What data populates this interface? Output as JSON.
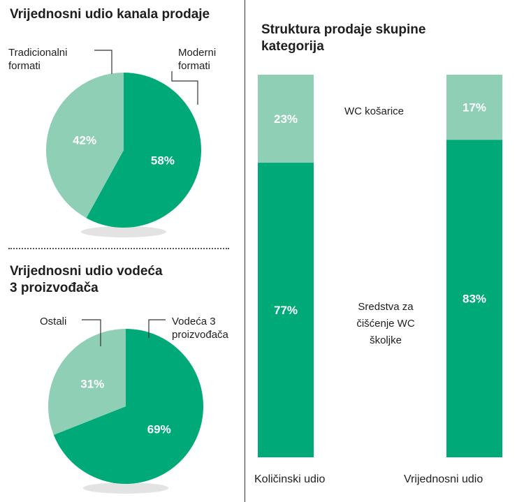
{
  "colors": {
    "dark": "#00aa78",
    "light": "#8ecfb6",
    "shadow": "#e3e3e3",
    "line": "#333333"
  },
  "chart_data": [
    {
      "type": "pie",
      "title": "Vrijednosni udio kanala prodaje",
      "slices": [
        {
          "label": "Moderni formati",
          "label_lines": [
            "Moderni",
            "formati"
          ],
          "value": 58,
          "value_label": "58%"
        },
        {
          "label": "Tradicionalni formati",
          "label_lines": [
            "Tradicionalni",
            "formati"
          ],
          "value": 42,
          "value_label": "42%"
        }
      ]
    },
    {
      "type": "pie",
      "title_lines": [
        "Vrijednosni udio vodeća",
        "3 proizvođača"
      ],
      "slices": [
        {
          "label": "Vodeća 3 proizvođača",
          "label_lines": [
            "Vodeća 3",
            "proizvođača"
          ],
          "value": 69,
          "value_label": "69%"
        },
        {
          "label": "Ostali",
          "label_lines": [
            "Ostali"
          ],
          "value": 31,
          "value_label": "31%"
        }
      ]
    },
    {
      "type": "bar",
      "stacked": true,
      "title_lines": [
        "Struktura prodaje skupine",
        "kategorija"
      ],
      "categories": [
        "Količinski udio",
        "Vrijednosni udio"
      ],
      "series": [
        {
          "name": "Sredstva za čišćenje WC školjke",
          "name_lines": [
            "Sredstva za",
            "čišćenje WC",
            "školjke"
          ],
          "values": [
            77,
            83
          ],
          "value_labels": [
            "77%",
            "83%"
          ]
        },
        {
          "name": "WC košarice",
          "name_lines": [
            "WC košarice"
          ],
          "values": [
            23,
            17
          ],
          "value_labels": [
            "23%",
            "17%"
          ]
        }
      ],
      "ylim": [
        0,
        100
      ]
    }
  ]
}
